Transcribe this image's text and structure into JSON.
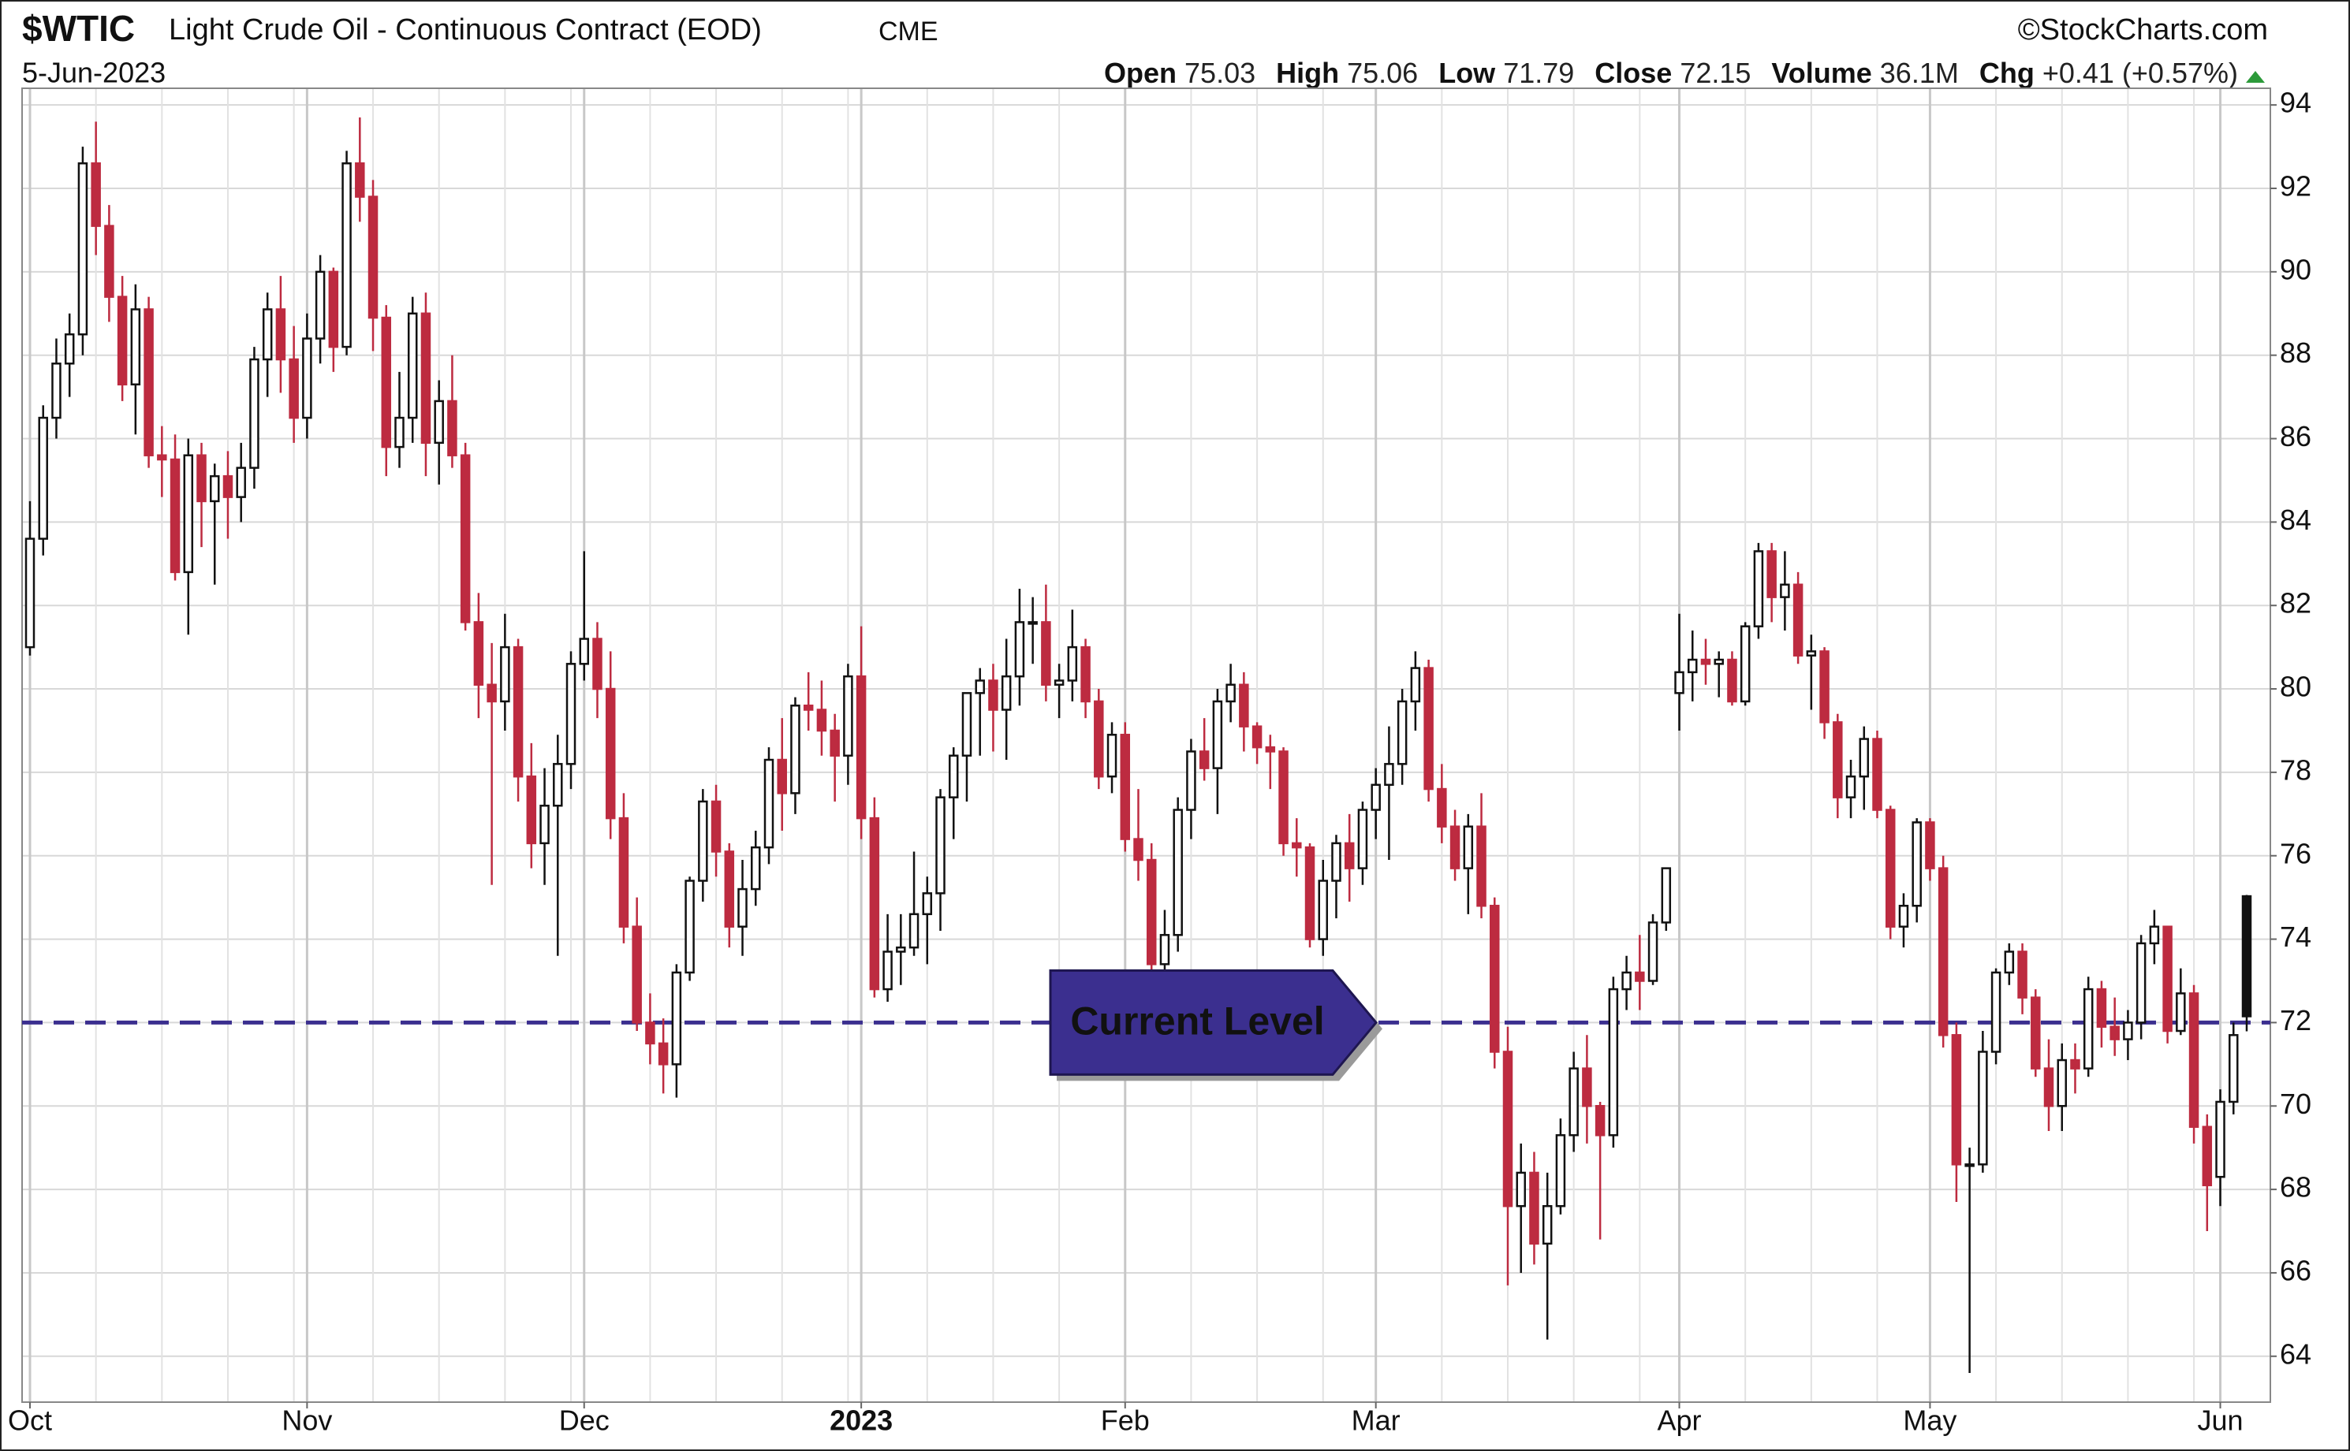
{
  "chart_data": {
    "type": "candlestick",
    "title": "$WTIC",
    "subtitle": "Light Crude Oil - Continuous Contract (EOD)",
    "exchange": "CME",
    "source": "©StockCharts.com",
    "date": "5-Jun-2023",
    "stats": [
      {
        "label": "Open",
        "value": 75.03
      },
      {
        "label": "High",
        "value": 75.06
      },
      {
        "label": "Low",
        "value": 71.79
      },
      {
        "label": "Close",
        "value": 72.15
      },
      {
        "label": "Volume",
        "value": "36.1M"
      },
      {
        "label": "Chg",
        "value": "+0.41 (+0.57%)"
      }
    ],
    "categories": [
      "Oct",
      null,
      null,
      null,
      null,
      null,
      null,
      null,
      null,
      null,
      null,
      null,
      null,
      null,
      null,
      null,
      null,
      null,
      null,
      null,
      null,
      "Nov",
      null,
      null,
      null,
      null,
      null,
      null,
      null,
      null,
      null,
      null,
      null,
      null,
      null,
      null,
      null,
      null,
      null,
      null,
      null,
      null,
      "Dec",
      null,
      null,
      null,
      null,
      null,
      null,
      null,
      null,
      null,
      null,
      null,
      null,
      null,
      null,
      null,
      null,
      null,
      null,
      null,
      null,
      "2023",
      null,
      null,
      null,
      null,
      null,
      null,
      null,
      null,
      null,
      null,
      null,
      null,
      null,
      null,
      null,
      null,
      null,
      null,
      null,
      "Feb",
      null,
      null,
      null,
      null,
      null,
      null,
      null,
      null,
      null,
      null,
      null,
      null,
      null,
      null,
      null,
      null,
      null,
      null,
      "Mar",
      null,
      null,
      null,
      null,
      null,
      null,
      null,
      null,
      null,
      null,
      null,
      null,
      null,
      null,
      null,
      null,
      null,
      null,
      null,
      null,
      null,
      null,
      "Apr",
      null,
      null,
      null,
      null,
      null,
      null,
      null,
      null,
      null,
      null,
      null,
      null,
      null,
      null,
      null,
      null,
      null,
      null,
      "May",
      null,
      null,
      null,
      null,
      null,
      null,
      null,
      null,
      null,
      null,
      null,
      null,
      null,
      null,
      null,
      null,
      null,
      null,
      null,
      null,
      null,
      "Jun",
      null,
      null
    ],
    "open": [
      81.0,
      83.6,
      86.5,
      87.8,
      88.5,
      92.6,
      91.1,
      89.4,
      87.3,
      89.1,
      85.6,
      85.5,
      82.8,
      85.6,
      84.5,
      85.1,
      84.6,
      85.3,
      87.9,
      89.1,
      87.9,
      86.5,
      88.4,
      90.0,
      88.2,
      92.6,
      91.8,
      88.9,
      85.8,
      86.5,
      89.0,
      85.9,
      86.9,
      85.6,
      81.6,
      80.1,
      79.7,
      81.0,
      77.9,
      76.3,
      77.2,
      78.2,
      80.6,
      81.2,
      80.0,
      76.9,
      74.3,
      72.0,
      71.5,
      71.0,
      73.2,
      75.4,
      77.3,
      76.1,
      74.3,
      75.2,
      76.2,
      78.3,
      77.5,
      79.6,
      79.5,
      79.0,
      78.4,
      80.3,
      76.9,
      72.8,
      73.7,
      73.8,
      74.6,
      75.1,
      77.4,
      78.4,
      79.9,
      80.2,
      79.5,
      80.3,
      81.6,
      81.6,
      80.1,
      80.2,
      81.0,
      79.7,
      77.9,
      78.9,
      76.4,
      75.9,
      73.4,
      74.1,
      77.1,
      78.5,
      78.1,
      79.7,
      80.1,
      79.1,
      78.6,
      78.5,
      76.3,
      76.2,
      74.0,
      75.4,
      76.3,
      75.7,
      77.1,
      77.7,
      78.2,
      79.7,
      80.5,
      77.6,
      76.7,
      75.7,
      76.7,
      74.8,
      71.3,
      67.6,
      68.4,
      66.7,
      67.6,
      69.3,
      70.9,
      70.0,
      69.3,
      72.8,
      73.2,
      73.0,
      74.4,
      79.9,
      80.4,
      80.7,
      80.6,
      80.7,
      79.7,
      81.5,
      83.3,
      82.2,
      82.5,
      80.8,
      80.9,
      79.2,
      77.4,
      77.9,
      78.8,
      77.1,
      74.3,
      74.8,
      76.8,
      75.7,
      71.7,
      68.6,
      68.6,
      71.3,
      73.2,
      73.7,
      72.6,
      70.9,
      70.0,
      71.1,
      70.9,
      72.8,
      71.9,
      71.6,
      72.0,
      73.9,
      74.3,
      71.8,
      72.7,
      69.5,
      68.3,
      70.1,
      75.03
    ],
    "high": [
      84.5,
      86.8,
      88.4,
      89.0,
      93.0,
      93.6,
      91.6,
      89.9,
      89.7,
      89.4,
      86.3,
      86.1,
      86.0,
      85.9,
      85.4,
      85.7,
      85.9,
      88.2,
      89.5,
      89.9,
      88.7,
      89.0,
      90.4,
      90.1,
      92.9,
      93.7,
      92.2,
      89.2,
      87.6,
      89.4,
      89.5,
      87.4,
      88.0,
      85.9,
      82.3,
      81.1,
      81.8,
      81.2,
      78.7,
      78.1,
      78.9,
      80.9,
      83.3,
      81.6,
      80.9,
      77.5,
      75.0,
      72.7,
      72.1,
      73.4,
      75.5,
      77.6,
      77.7,
      76.3,
      75.9,
      76.6,
      78.6,
      79.3,
      79.8,
      80.4,
      80.2,
      79.4,
      80.6,
      81.5,
      77.4,
      74.6,
      74.6,
      76.1,
      75.5,
      77.6,
      78.6,
      79.9,
      80.5,
      80.6,
      81.2,
      82.4,
      82.2,
      82.5,
      80.6,
      81.9,
      81.2,
      80.0,
      79.2,
      79.2,
      77.6,
      76.3,
      74.7,
      77.4,
      78.8,
      79.3,
      80.0,
      80.6,
      80.4,
      79.2,
      78.9,
      78.6,
      76.9,
      76.3,
      75.9,
      76.5,
      77.0,
      77.3,
      78.1,
      79.1,
      80.0,
      80.9,
      80.7,
      78.2,
      77.1,
      77.0,
      77.5,
      75.0,
      71.9,
      69.1,
      68.9,
      68.4,
      69.7,
      71.3,
      71.7,
      70.1,
      73.1,
      73.6,
      74.1,
      74.6,
      75.7,
      81.8,
      81.4,
      81.2,
      80.9,
      80.9,
      81.6,
      83.5,
      83.5,
      83.3,
      82.8,
      81.3,
      81.0,
      79.4,
      78.3,
      79.1,
      79.0,
      77.2,
      75.1,
      76.9,
      76.9,
      76.0,
      72.0,
      69.0,
      71.8,
      73.3,
      73.9,
      73.9,
      72.8,
      71.6,
      71.5,
      71.5,
      73.1,
      73.0,
      72.6,
      72.3,
      74.1,
      74.7,
      74.3,
      73.3,
      72.9,
      69.8,
      70.4,
      72.0,
      75.06
    ],
    "low": [
      80.8,
      83.2,
      86.0,
      87.0,
      88.0,
      90.4,
      88.8,
      86.9,
      86.1,
      85.3,
      84.6,
      82.6,
      81.3,
      83.4,
      82.5,
      83.6,
      84.0,
      84.8,
      87.0,
      87.1,
      85.9,
      86.0,
      87.8,
      87.6,
      88.0,
      91.2,
      88.1,
      85.1,
      85.3,
      85.9,
      85.1,
      84.9,
      85.3,
      81.4,
      79.3,
      75.3,
      79.0,
      77.3,
      75.7,
      75.3,
      73.6,
      77.6,
      80.2,
      79.3,
      76.4,
      73.9,
      71.8,
      71.0,
      70.3,
      70.2,
      73.0,
      74.9,
      75.5,
      73.8,
      73.6,
      74.8,
      75.8,
      76.6,
      77.0,
      79.0,
      78.4,
      77.3,
      77.7,
      76.4,
      72.6,
      72.5,
      72.9,
      73.6,
      73.4,
      74.2,
      76.4,
      77.3,
      78.4,
      78.5,
      78.3,
      79.6,
      80.6,
      79.7,
      79.3,
      79.7,
      79.3,
      77.6,
      77.5,
      76.1,
      75.4,
      72.3,
      72.6,
      73.7,
      76.4,
      77.8,
      77.0,
      79.2,
      78.5,
      78.2,
      77.6,
      76.0,
      75.5,
      73.8,
      73.6,
      74.5,
      74.9,
      75.3,
      76.4,
      75.9,
      77.7,
      79.0,
      77.3,
      76.3,
      75.4,
      74.6,
      74.5,
      70.9,
      65.7,
      66.0,
      66.2,
      64.4,
      67.4,
      68.9,
      69.1,
      66.8,
      69.0,
      72.3,
      72.3,
      72.9,
      74.2,
      79.0,
      79.7,
      80.1,
      79.8,
      79.6,
      79.6,
      81.2,
      81.6,
      81.4,
      80.6,
      79.5,
      78.8,
      76.9,
      76.9,
      77.1,
      76.9,
      74.0,
      73.8,
      74.4,
      75.4,
      71.4,
      67.7,
      63.6,
      68.4,
      71.0,
      72.9,
      72.2,
      70.7,
      69.4,
      69.4,
      70.3,
      70.7,
      71.4,
      71.2,
      71.1,
      71.6,
      73.4,
      71.5,
      71.7,
      69.1,
      67.0,
      67.6,
      69.8,
      71.79
    ],
    "close": [
      83.6,
      86.5,
      87.8,
      88.5,
      92.6,
      91.1,
      89.4,
      87.3,
      89.1,
      85.6,
      85.5,
      82.8,
      85.6,
      84.5,
      85.1,
      84.6,
      85.3,
      87.9,
      89.1,
      87.9,
      86.5,
      88.4,
      90.0,
      88.2,
      92.6,
      91.8,
      88.9,
      85.8,
      86.5,
      89.0,
      85.9,
      86.9,
      85.6,
      81.6,
      80.1,
      79.7,
      81.0,
      77.9,
      76.3,
      77.2,
      78.2,
      80.6,
      81.2,
      80.0,
      76.9,
      74.3,
      72.0,
      71.5,
      71.0,
      73.2,
      75.4,
      77.3,
      76.1,
      74.3,
      75.2,
      76.2,
      78.3,
      77.5,
      79.6,
      79.5,
      79.0,
      78.4,
      80.3,
      76.9,
      72.8,
      73.7,
      73.8,
      74.6,
      75.1,
      77.4,
      78.4,
      79.9,
      80.2,
      79.5,
      80.3,
      81.6,
      81.6,
      80.1,
      80.2,
      81.0,
      79.7,
      77.9,
      78.9,
      76.4,
      75.9,
      73.4,
      74.1,
      77.1,
      78.5,
      78.1,
      79.7,
      80.1,
      79.1,
      78.6,
      78.5,
      76.3,
      76.2,
      74.0,
      75.4,
      76.3,
      75.7,
      77.1,
      77.7,
      78.2,
      79.7,
      80.5,
      77.6,
      76.7,
      75.7,
      76.7,
      74.8,
      71.3,
      67.6,
      68.4,
      66.7,
      67.6,
      69.3,
      70.9,
      70.0,
      69.3,
      72.8,
      73.2,
      73.0,
      74.4,
      75.7,
      80.4,
      80.7,
      80.6,
      80.7,
      79.7,
      81.5,
      83.3,
      82.2,
      82.5,
      80.8,
      80.9,
      79.2,
      77.4,
      77.9,
      78.8,
      77.1,
      74.3,
      74.8,
      76.8,
      75.7,
      71.7,
      68.6,
      68.6,
      71.3,
      73.2,
      73.7,
      72.6,
      70.9,
      70.0,
      71.1,
      70.9,
      72.8,
      71.9,
      71.6,
      72.0,
      73.9,
      74.3,
      71.8,
      72.7,
      69.5,
      68.1,
      70.1,
      71.7,
      72.15
    ],
    "up_color": "#111111",
    "down_color": "#bd2b40",
    "ylim": [
      62.9,
      94.4
    ],
    "yticks": [
      64,
      66,
      68,
      70,
      72,
      74,
      76,
      78,
      80,
      82,
      84,
      86,
      88,
      90,
      92,
      94
    ],
    "y_axis_side": "right",
    "grid": true,
    "reference_line": {
      "value": 72,
      "label": "Current Level",
      "color": "#3b2f8f"
    }
  }
}
